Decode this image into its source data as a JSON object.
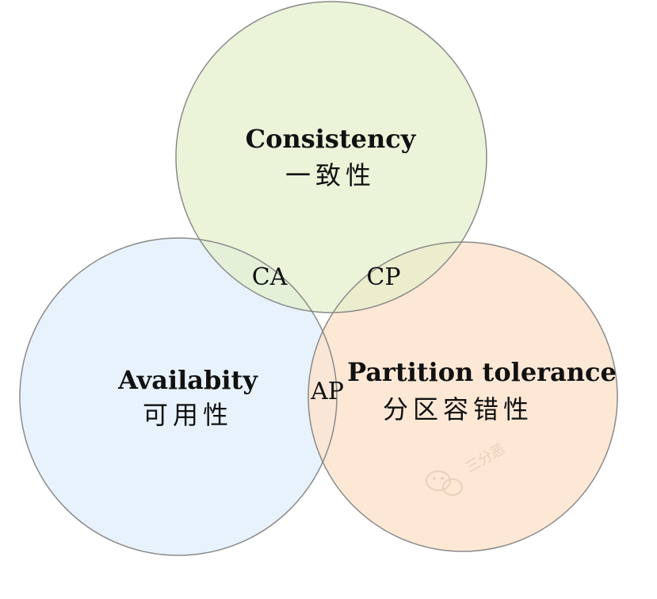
{
  "circles": {
    "consistency": {
      "title": "Consistency",
      "subtitle": "一致性",
      "fill": "#e2f0c9",
      "stroke": "#8a8a8a"
    },
    "availability": {
      "title": "Availabity",
      "subtitle": "可用性",
      "fill": "#e6f1fc",
      "stroke": "#8a8a8a"
    },
    "partition": {
      "title": "Partition tolerance",
      "subtitle": "分区容错性",
      "fill": "#fce2cc",
      "stroke": "#8a8a8a"
    }
  },
  "intersections": {
    "ca": "CA",
    "cp": "CP",
    "ap": "AP"
  },
  "watermark": {
    "icon": "wechat-icon",
    "text": "三分恶"
  }
}
